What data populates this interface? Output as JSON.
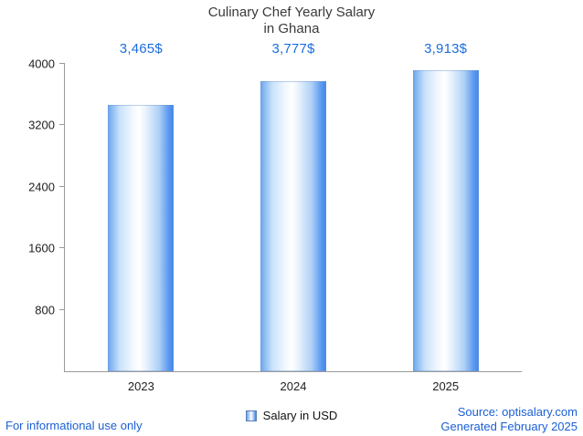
{
  "title": {
    "line1": "Culinary Chef Yearly Salary",
    "line2": "in Ghana"
  },
  "chart_data": {
    "type": "bar",
    "categories": [
      "2023",
      "2024",
      "2025"
    ],
    "values": [
      3465,
      3777,
      3913
    ],
    "value_labels": [
      "3,465$",
      "3,777$",
      "3,913$"
    ],
    "series_name": "Salary in USD",
    "title": "Culinary Chef Yearly Salary in Ghana",
    "xlabel": "",
    "ylabel": "",
    "ylim": [
      0,
      4000
    ],
    "yticks": [
      800,
      1600,
      2400,
      3200,
      4000
    ],
    "grid": false,
    "legend_position": "bottom"
  },
  "legend": {
    "label": "Salary in USD"
  },
  "footer": {
    "disclaimer": "For informational use only",
    "source": "Source: optisalary.com",
    "generated": "Generated February 2025"
  },
  "colors": {
    "accent_blue": "#1b6ddd",
    "footer_blue": "#1b5fd6",
    "bar_edge_blue": "#3f86e8",
    "bar_light": "#ffffff",
    "axis_gray": "#999999",
    "title_gray": "#3a3a3a"
  }
}
